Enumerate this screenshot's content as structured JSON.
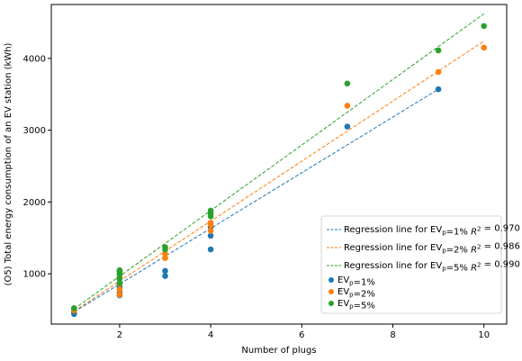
{
  "chart_data": {
    "type": "scatter",
    "xlabel": "Number of plugs",
    "ylabel": "(O5) Total energy consumption of an EV station (kWh)",
    "xlim": [
      0.5,
      10.5
    ],
    "ylim": [
      300,
      4750
    ],
    "xticks": [
      2,
      4,
      6,
      8,
      10
    ],
    "xtick_labels": [
      "2",
      "4",
      "6",
      "8",
      "10"
    ],
    "yticks": [
      1000,
      2000,
      3000,
      4000
    ],
    "ytick_labels": [
      "1000",
      "2000",
      "3000",
      "4000"
    ],
    "grid": false,
    "legend_position": "lower-right",
    "series": [
      {
        "name": "EV_p=1%",
        "color": "#1f77b4",
        "points": [
          [
            1,
            440
          ],
          [
            1,
            470
          ],
          [
            1,
            520
          ],
          [
            2,
            700
          ],
          [
            2,
            740
          ],
          [
            2,
            820
          ],
          [
            2,
            870
          ],
          [
            2,
            940
          ],
          [
            3,
            970
          ],
          [
            3,
            1040
          ],
          [
            4,
            1340
          ],
          [
            4,
            1530
          ],
          [
            4,
            1650
          ],
          [
            7,
            3050
          ],
          [
            9,
            3570
          ]
        ],
        "regression": {
          "label": "Regression line for EV_p=1% R^2 = 0.970",
          "x": [
            1,
            9
          ],
          "y": [
            470,
            3570
          ]
        }
      },
      {
        "name": "EV_p=2%",
        "color": "#ff7f0e",
        "points": [
          [
            1,
            490
          ],
          [
            1,
            510
          ],
          [
            2,
            710
          ],
          [
            2,
            780
          ],
          [
            2,
            860
          ],
          [
            2,
            950
          ],
          [
            3,
            1220
          ],
          [
            3,
            1280
          ],
          [
            4,
            1600
          ],
          [
            4,
            1680
          ],
          [
            4,
            1710
          ],
          [
            7,
            3340
          ],
          [
            9,
            3810
          ],
          [
            10,
            4150
          ]
        ],
        "regression": {
          "label": "Regression line for EV_p=2% R^2 = 0.986",
          "x": [
            1,
            10
          ],
          "y": [
            480,
            4240
          ]
        }
      },
      {
        "name": "EV_p=5%",
        "color": "#2ca02c",
        "points": [
          [
            1,
            520
          ],
          [
            2,
            870
          ],
          [
            2,
            930
          ],
          [
            2,
            990
          ],
          [
            2,
            1020
          ],
          [
            2,
            1040
          ],
          [
            2,
            1050
          ],
          [
            3,
            1340
          ],
          [
            3,
            1370
          ],
          [
            4,
            1800
          ],
          [
            4,
            1840
          ],
          [
            4,
            1880
          ],
          [
            7,
            3650
          ],
          [
            9,
            4110
          ],
          [
            10,
            4450
          ]
        ],
        "regression": {
          "label": "Regression line for EV_p=5% R^2 = 0.990",
          "x": [
            1,
            10
          ],
          "y": [
            510,
            4620
          ]
        }
      }
    ]
  }
}
